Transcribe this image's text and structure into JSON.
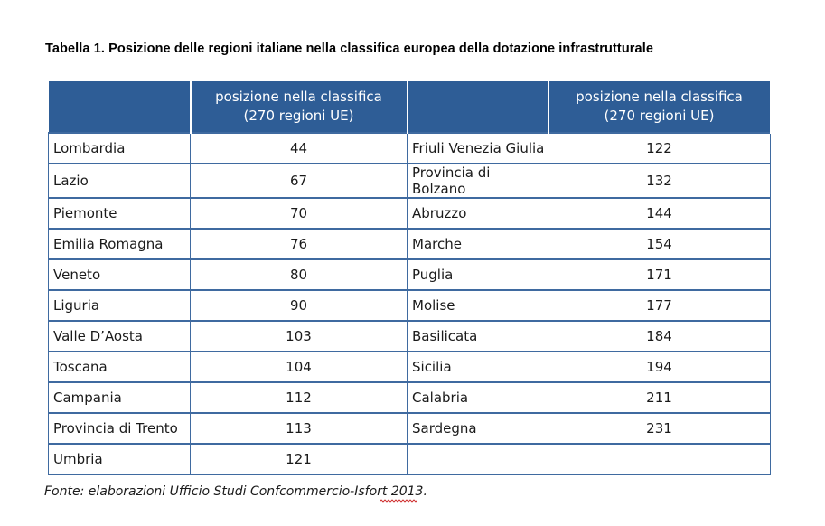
{
  "title": "Tabella 1. Posizione delle regioni italiane nella classifica europea della dotazione infrastrutturale",
  "table": {
    "header": {
      "col1": "",
      "col2_line1": "posizione nella classifica",
      "col2_line2": "(270 regioni UE)",
      "col3": "",
      "col4_line1": "posizione nella classifica",
      "col4_line2": "(270 regioni UE)"
    },
    "rows": [
      {
        "left_region": "Lombardia",
        "left_rank": "44",
        "right_region": "Friuli Venezia Giulia",
        "right_rank": "122"
      },
      {
        "left_region": "Lazio",
        "left_rank": "67",
        "right_region": "Provincia di Bolzano",
        "right_rank": "132"
      },
      {
        "left_region": "Piemonte",
        "left_rank": "70",
        "right_region": "Abruzzo",
        "right_rank": "144"
      },
      {
        "left_region": "Emilia Romagna",
        "left_rank": "76",
        "right_region": "Marche",
        "right_rank": "154"
      },
      {
        "left_region": "Veneto",
        "left_rank": "80",
        "right_region": "Puglia",
        "right_rank": "171"
      },
      {
        "left_region": "Liguria",
        "left_rank": "90",
        "right_region": "Molise",
        "right_rank": "177"
      },
      {
        "left_region": "Valle D’Aosta",
        "left_rank": "103",
        "right_region": "Basilicata",
        "right_rank": "184"
      },
      {
        "left_region": "Toscana",
        "left_rank": "104",
        "right_region": "Sicilia",
        "right_rank": "194"
      },
      {
        "left_region": "Campania",
        "left_rank": "112",
        "right_region": "Calabria",
        "right_rank": "211"
      },
      {
        "left_region": "Provincia di Trento",
        "left_rank": "113",
        "right_region": "Sardegna",
        "right_rank": "231"
      },
      {
        "left_region": "Umbria",
        "left_rank": "121",
        "right_region": "",
        "right_rank": ""
      }
    ]
  },
  "source": "Fonte: elaborazioni Ufficio Studi Confcommercio-Isfort 2013.",
  "colors": {
    "header_bg": "#2e5d96",
    "grid": "#3f6aa0",
    "spellcheck": "#cc2222"
  }
}
